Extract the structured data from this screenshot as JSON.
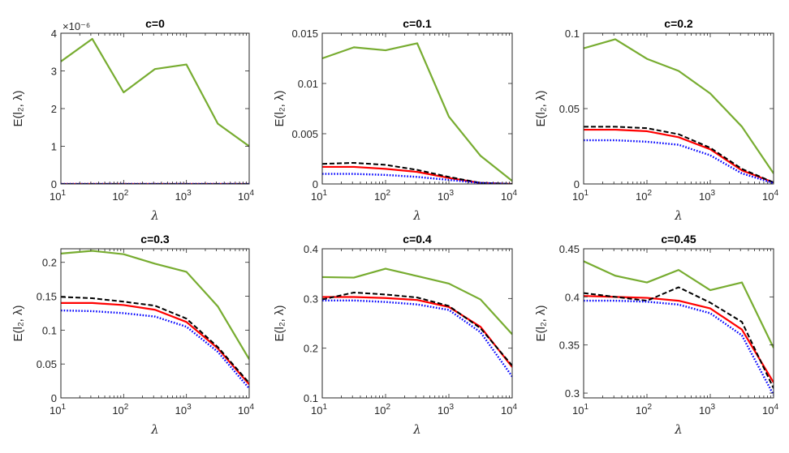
{
  "chart_data": [
    {
      "type": "line",
      "title": "c=0",
      "xlabel": "λ",
      "ylabel": "E(l₂, λ)",
      "x_scale": "log",
      "xlim": [
        10,
        10000
      ],
      "ylim": [
        0,
        4e-06
      ],
      "xticks": [
        10,
        100,
        1000,
        10000
      ],
      "yticks": [
        0,
        1e-06,
        2e-06,
        3e-06,
        4e-06
      ],
      "ytick_labels": [
        "0",
        "1",
        "2",
        "3",
        "4"
      ],
      "y_exponent": "×10⁻⁶",
      "x": [
        10,
        31.6,
        100,
        316,
        1000,
        3162,
        10000
      ],
      "series": [
        {
          "color": "#77ac30",
          "style": "solid",
          "values": [
            3.25e-06,
            3.85e-06,
            2.43e-06,
            3.05e-06,
            3.17e-06,
            1.6e-06,
            1e-06
          ]
        },
        {
          "color": "#ff0000",
          "style": "solid",
          "values": [
            0,
            0,
            0,
            0,
            0,
            0,
            0
          ]
        },
        {
          "color": "#000000",
          "style": "dashed",
          "values": [
            0,
            0,
            0,
            0,
            0,
            0,
            0
          ]
        },
        {
          "color": "#0000ff",
          "style": "dotted",
          "values": [
            0,
            0,
            0,
            0,
            0,
            0,
            0
          ]
        }
      ]
    },
    {
      "type": "line",
      "title": "c=0.1",
      "xlabel": "λ",
      "ylabel": "E(l₂, λ)",
      "x_scale": "log",
      "xlim": [
        10,
        10000
      ],
      "ylim": [
        0,
        0.015
      ],
      "xticks": [
        10,
        100,
        1000,
        10000
      ],
      "yticks": [
        0,
        0.005,
        0.01,
        0.015
      ],
      "ytick_labels": [
        "0",
        "0.005",
        "0.01",
        "0.015"
      ],
      "x": [
        10,
        31.6,
        100,
        316,
        1000,
        3162,
        10000
      ],
      "series": [
        {
          "color": "#77ac30",
          "style": "solid",
          "values": [
            0.0125,
            0.0136,
            0.0133,
            0.014,
            0.0067,
            0.0028,
            0.0003
          ]
        },
        {
          "color": "#ff0000",
          "style": "solid",
          "values": [
            0.0017,
            0.0017,
            0.0015,
            0.0012,
            0.0006,
            0.0001,
            0.0
          ]
        },
        {
          "color": "#000000",
          "style": "dashed",
          "values": [
            0.002,
            0.0021,
            0.0019,
            0.0014,
            0.0007,
            0.0001,
            0.0
          ]
        },
        {
          "color": "#0000ff",
          "style": "dotted",
          "values": [
            0.001,
            0.001,
            0.0009,
            0.0007,
            0.0004,
            0.0001,
            0.0
          ]
        }
      ]
    },
    {
      "type": "line",
      "title": "c=0.2",
      "xlabel": "λ",
      "ylabel": "E(l₂, λ)",
      "x_scale": "log",
      "xlim": [
        10,
        10000
      ],
      "ylim": [
        0,
        0.1
      ],
      "xticks": [
        10,
        100,
        1000,
        10000
      ],
      "yticks": [
        0,
        0.05,
        0.1
      ],
      "ytick_labels": [
        "0",
        "0.05",
        "0.1"
      ],
      "x": [
        10,
        31.6,
        100,
        316,
        1000,
        3162,
        10000
      ],
      "series": [
        {
          "color": "#77ac30",
          "style": "solid",
          "values": [
            0.09,
            0.096,
            0.083,
            0.075,
            0.06,
            0.038,
            0.007
          ]
        },
        {
          "color": "#ff0000",
          "style": "solid",
          "values": [
            0.036,
            0.036,
            0.035,
            0.031,
            0.023,
            0.009,
            0.001
          ]
        },
        {
          "color": "#000000",
          "style": "dashed",
          "values": [
            0.038,
            0.038,
            0.037,
            0.033,
            0.024,
            0.01,
            0.001
          ]
        },
        {
          "color": "#0000ff",
          "style": "dotted",
          "values": [
            0.029,
            0.029,
            0.028,
            0.026,
            0.019,
            0.007,
            0.0005
          ]
        }
      ]
    },
    {
      "type": "line",
      "title": "c=0.3",
      "xlabel": "λ",
      "ylabel": "E(l₂, λ)",
      "x_scale": "log",
      "xlim": [
        10,
        10000
      ],
      "ylim": [
        0,
        0.22
      ],
      "xticks": [
        10,
        100,
        1000,
        10000
      ],
      "yticks": [
        0,
        0.05,
        0.1,
        0.15,
        0.2
      ],
      "ytick_labels": [
        "0",
        "0.05",
        "0.1",
        "0.15",
        "0.2"
      ],
      "x": [
        10,
        31.6,
        100,
        316,
        1000,
        3162,
        10000
      ],
      "series": [
        {
          "color": "#77ac30",
          "style": "solid",
          "values": [
            0.213,
            0.217,
            0.212,
            0.198,
            0.186,
            0.135,
            0.057
          ]
        },
        {
          "color": "#ff0000",
          "style": "solid",
          "values": [
            0.14,
            0.14,
            0.137,
            0.13,
            0.112,
            0.073,
            0.02
          ]
        },
        {
          "color": "#000000",
          "style": "dashed",
          "values": [
            0.149,
            0.147,
            0.142,
            0.136,
            0.117,
            0.075,
            0.022
          ]
        },
        {
          "color": "#0000ff",
          "style": "dotted",
          "values": [
            0.129,
            0.128,
            0.125,
            0.12,
            0.105,
            0.068,
            0.014
          ]
        }
      ]
    },
    {
      "type": "line",
      "title": "c=0.4",
      "xlabel": "λ",
      "ylabel": "E(l₂, λ)",
      "x_scale": "log",
      "xlim": [
        10,
        10000
      ],
      "ylim": [
        0.1,
        0.4
      ],
      "xticks": [
        10,
        100,
        1000,
        10000
      ],
      "yticks": [
        0.1,
        0.2,
        0.3,
        0.4
      ],
      "ytick_labels": [
        "0.1",
        "0.2",
        "0.3",
        "0.4"
      ],
      "x": [
        10,
        31.6,
        100,
        316,
        1000,
        3162,
        10000
      ],
      "series": [
        {
          "color": "#77ac30",
          "style": "solid",
          "values": [
            0.343,
            0.342,
            0.36,
            0.345,
            0.33,
            0.298,
            0.228
          ]
        },
        {
          "color": "#ff0000",
          "style": "solid",
          "values": [
            0.303,
            0.303,
            0.301,
            0.297,
            0.283,
            0.243,
            0.162
          ]
        },
        {
          "color": "#000000",
          "style": "dashed",
          "values": [
            0.298,
            0.312,
            0.308,
            0.302,
            0.285,
            0.24,
            0.165
          ]
        },
        {
          "color": "#0000ff",
          "style": "dotted",
          "values": [
            0.296,
            0.296,
            0.293,
            0.288,
            0.277,
            0.232,
            0.143
          ]
        }
      ]
    },
    {
      "type": "line",
      "title": "c=0.45",
      "xlabel": "λ",
      "ylabel": "E(l₂, λ)",
      "x_scale": "log",
      "xlim": [
        10,
        10000
      ],
      "ylim": [
        0.295,
        0.45
      ],
      "xticks": [
        10,
        100,
        1000,
        10000
      ],
      "yticks": [
        0.3,
        0.35,
        0.4,
        0.45
      ],
      "ytick_labels": [
        "0.3",
        "0.35",
        "0.4",
        "0.45"
      ],
      "x": [
        10,
        31.6,
        100,
        316,
        1000,
        3162,
        10000
      ],
      "series": [
        {
          "color": "#77ac30",
          "style": "solid",
          "values": [
            0.437,
            0.422,
            0.415,
            0.428,
            0.407,
            0.415,
            0.347
          ]
        },
        {
          "color": "#ff0000",
          "style": "solid",
          "values": [
            0.401,
            0.4,
            0.399,
            0.396,
            0.388,
            0.366,
            0.311
          ]
        },
        {
          "color": "#000000",
          "style": "dashed",
          "values": [
            0.404,
            0.4,
            0.396,
            0.41,
            0.394,
            0.374,
            0.305
          ]
        },
        {
          "color": "#0000ff",
          "style": "dotted",
          "values": [
            0.396,
            0.396,
            0.395,
            0.392,
            0.383,
            0.36,
            0.298
          ]
        }
      ]
    }
  ]
}
